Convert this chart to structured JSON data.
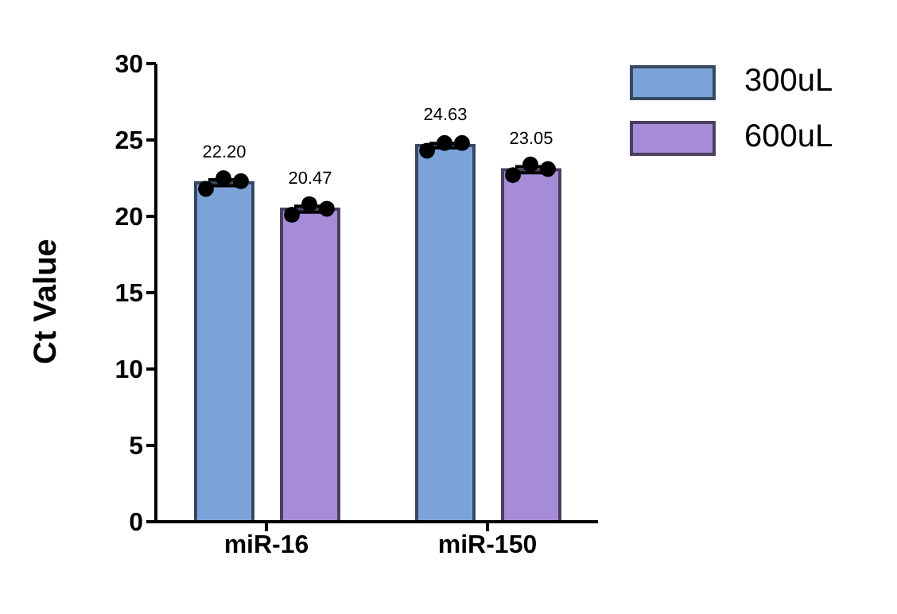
{
  "chart_data": {
    "type": "bar",
    "ylabel": "Ct Value",
    "categories": [
      "miR-16",
      "miR-150"
    ],
    "ylim": [
      0,
      30
    ],
    "yticks": [
      0,
      5,
      10,
      15,
      20,
      25,
      30
    ],
    "legend": "top right",
    "marker": "circle",
    "series": [
      {
        "name": "300uL",
        "color": "#7ba3d8",
        "values": [
          22.2,
          24.63
        ],
        "value_labels": [
          "22.20",
          "24.63"
        ],
        "errors": [
          0.2,
          0.15
        ]
      },
      {
        "name": "600uL",
        "color": "#a68bd6",
        "values": [
          20.47,
          23.05
        ],
        "value_labels": [
          "20.47",
          "23.05"
        ],
        "errors": [
          0.2,
          0.2
        ]
      },
      {
        "type": "scatter",
        "color": "#000000",
        "x": [
          "miR-16",
          "miR-16",
          "miR-16",
          "miR-150",
          "miR-150",
          "miR-150"
        ],
        "values": [
          21.8,
          22.5,
          22.3,
          24.3,
          24.8,
          24.8
        ]
      },
      {
        "type": "scatter",
        "color": "#000000",
        "x": [
          "miR-16",
          "miR-16",
          "miR-16",
          "miR-150",
          "miR-150",
          "miR-150"
        ],
        "values": [
          20.1,
          20.8,
          20.5,
          22.7,
          23.4,
          23.1
        ]
      }
    ]
  }
}
